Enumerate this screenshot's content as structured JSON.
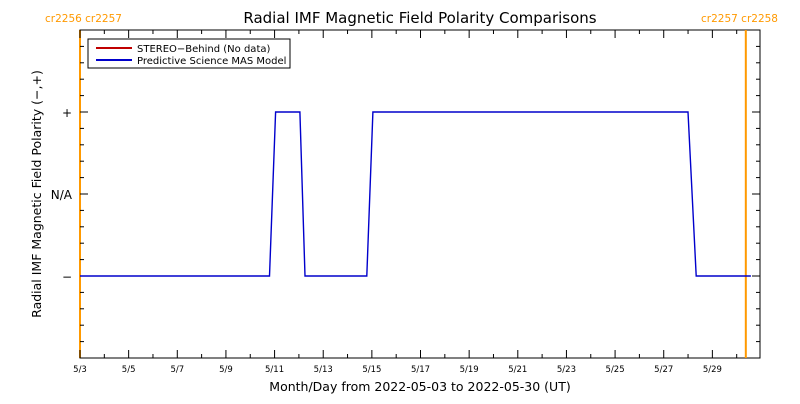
{
  "chart_data": {
    "type": "line",
    "title": "Radial IMF Magnetic Field Polarity Comparisons",
    "xlabel": "Month/Day from 2022-05-03 to 2022-05-30 (UT)",
    "ylabel": "Radial IMF Magnetic Field Polarity (−,+)",
    "xlim": [
      "2022-05-03",
      "2022-05-30T23:00"
    ],
    "ylim": [
      -2,
      2
    ],
    "x_ticks": [
      "5/3",
      "5/5",
      "5/7",
      "5/9",
      "5/11",
      "5/13",
      "5/15",
      "5/17",
      "5/19",
      "5/21",
      "5/23",
      "5/25",
      "5/27",
      "5/29"
    ],
    "y_ticks": [
      {
        "value": 1,
        "label": "+"
      },
      {
        "value": 0,
        "label": "N/A"
      },
      {
        "value": -1,
        "label": "−"
      }
    ],
    "grid": false,
    "legend_position": "top-left",
    "series": [
      {
        "name": "STEREO−Behind (No data)",
        "color": "#c00000",
        "points": []
      },
      {
        "name": "Predictive Science MAS Model",
        "color": "#0000cc",
        "points": [
          {
            "x": "2022-05-03T00:00",
            "y": -1
          },
          {
            "x": "2022-05-10T19:00",
            "y": -1
          },
          {
            "x": "2022-05-11T01:00",
            "y": 1
          },
          {
            "x": "2022-05-12T01:00",
            "y": 1
          },
          {
            "x": "2022-05-12T06:00",
            "y": -1
          },
          {
            "x": "2022-05-14T19:00",
            "y": -1
          },
          {
            "x": "2022-05-15T01:00",
            "y": 1
          },
          {
            "x": "2022-05-28T00:00",
            "y": 1
          },
          {
            "x": "2022-05-28T08:00",
            "y": -1
          },
          {
            "x": "2022-05-30T14:00",
            "y": -1
          }
        ]
      }
    ],
    "annotations": [
      {
        "text": "cr2256 cr2257",
        "x": "2022-05-03T00:00",
        "color": "#ff9900",
        "position": "top-left"
      },
      {
        "text": "cr2257 cr2258",
        "x": "2022-05-30T09:00",
        "color": "#ff9900",
        "position": "top-right"
      }
    ]
  }
}
